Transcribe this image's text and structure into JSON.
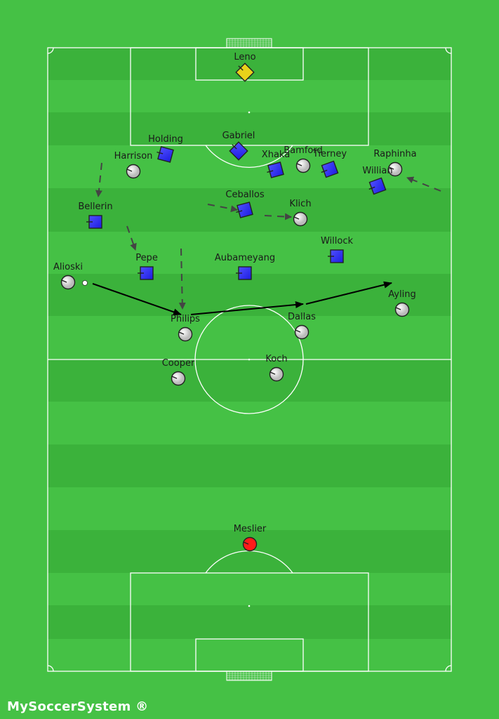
{
  "colors": {
    "pitch_light": "#45c145",
    "pitch_dark": "#3bb23b",
    "home_team": "#2f2ff5",
    "away_team": "#f0f0f0",
    "home_keeper": "#e8d21a",
    "away_keeper": "#ff1a1a"
  },
  "players": [
    {
      "name": "Leno",
      "team": "home",
      "role": "goalkeeper",
      "icon": "diamond"
    },
    {
      "name": "Holding",
      "team": "home",
      "icon": "square"
    },
    {
      "name": "Gabriel",
      "team": "home",
      "icon": "square"
    },
    {
      "name": "Harrison",
      "team": "away",
      "icon": "circle"
    },
    {
      "name": "Xhaka",
      "team": "home",
      "icon": "square"
    },
    {
      "name": "Bamford",
      "team": "away",
      "icon": "circle"
    },
    {
      "name": "Tierney",
      "team": "home",
      "icon": "square"
    },
    {
      "name": "Raphinha",
      "team": "away",
      "icon": "circle"
    },
    {
      "name": "Willian",
      "team": "home",
      "icon": "square"
    },
    {
      "name": "Bellerin",
      "team": "home",
      "icon": "square"
    },
    {
      "name": "Ceballos",
      "team": "home",
      "icon": "square"
    },
    {
      "name": "Klich",
      "team": "away",
      "icon": "circle"
    },
    {
      "name": "Willock",
      "team": "home",
      "icon": "square"
    },
    {
      "name": "Pepe",
      "team": "home",
      "icon": "square"
    },
    {
      "name": "Aubameyang",
      "team": "home",
      "icon": "square"
    },
    {
      "name": "Alioski",
      "team": "away",
      "icon": "circle"
    },
    {
      "name": "Ayling",
      "team": "away",
      "icon": "circle"
    },
    {
      "name": "Philips",
      "team": "away",
      "icon": "circle"
    },
    {
      "name": "Dallas",
      "team": "away",
      "icon": "circle"
    },
    {
      "name": "Cooper",
      "team": "away",
      "icon": "circle"
    },
    {
      "name": "Koch",
      "team": "away",
      "icon": "circle"
    },
    {
      "name": "Meslier",
      "team": "away",
      "role": "goalkeeper",
      "icon": "circle"
    }
  ],
  "arrows": {
    "movement": "dashed",
    "pass": "solid"
  },
  "watermark": "MySoccerSystem ®"
}
